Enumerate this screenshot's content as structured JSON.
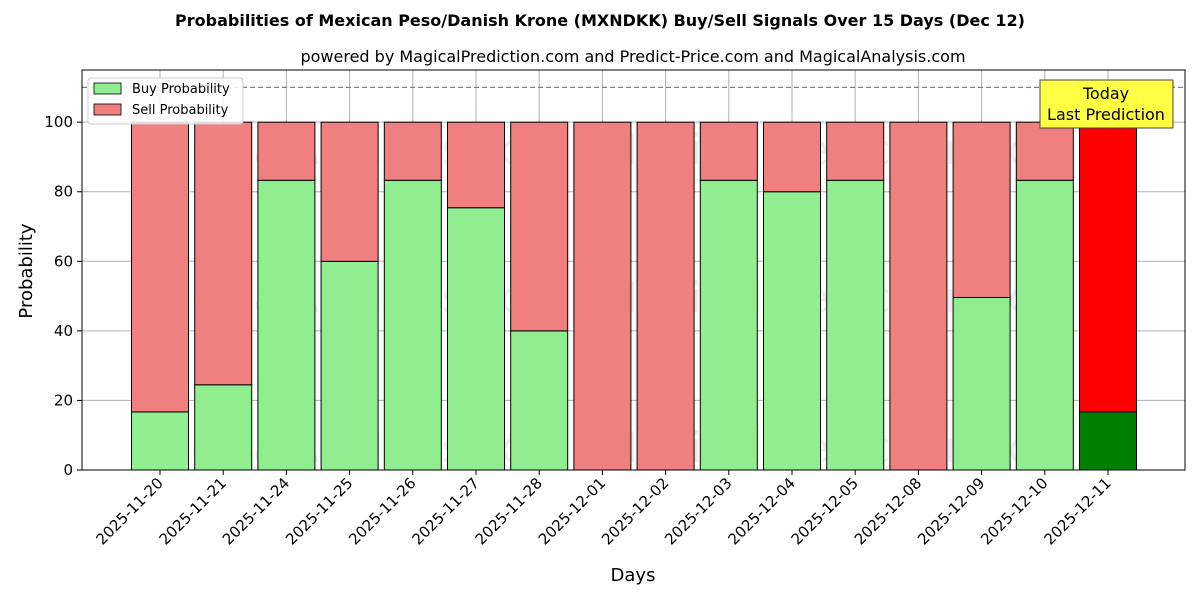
{
  "title": "Probabilities of Mexican Peso/Danish Krone (MXNDKK) Buy/Sell Signals Over 15 Days (Dec 12)",
  "subtitle": "powered by MagicalPrediction.com and Predict-Price.com and MagicalAnalysis.com",
  "watermarks": [
    "MagicalAnalysis.com",
    "MagicalPrediction.com"
  ],
  "annotation": {
    "line1": "Today",
    "line2": "Last Prediction"
  },
  "colors": {
    "buy": "#90ee90",
    "sell": "#f08080",
    "buy_today": "#008000",
    "sell_today": "#ff0000",
    "annotation_bg": "#ffff44"
  },
  "chart_data": {
    "type": "bar",
    "stacked": true,
    "xlabel": "Days",
    "ylabel": "Probability",
    "ylim": [
      0,
      115
    ],
    "yticks": [
      0,
      20,
      40,
      60,
      80,
      100
    ],
    "reference_line": 110,
    "grid": true,
    "legend_position": "top-left",
    "categories": [
      "2025-11-20",
      "2025-11-21",
      "2025-11-24",
      "2025-11-25",
      "2025-11-26",
      "2025-11-27",
      "2025-11-28",
      "2025-12-01",
      "2025-12-02",
      "2025-12-03",
      "2025-12-04",
      "2025-12-05",
      "2025-12-08",
      "2025-12-09",
      "2025-12-10",
      "2025-12-11"
    ],
    "series": [
      {
        "name": "Buy Probability",
        "values": [
          16.7,
          24.5,
          83.3,
          60,
          83.3,
          75.4,
          40,
          0,
          0,
          83.3,
          80,
          83.3,
          0,
          49.6,
          83.3,
          16.7
        ]
      },
      {
        "name": "Sell Probability",
        "values": [
          83.3,
          75.5,
          16.7,
          40,
          16.7,
          24.6,
          60,
          100,
          100,
          16.7,
          20,
          16.7,
          100,
          50.4,
          16.7,
          83.3
        ]
      }
    ]
  }
}
